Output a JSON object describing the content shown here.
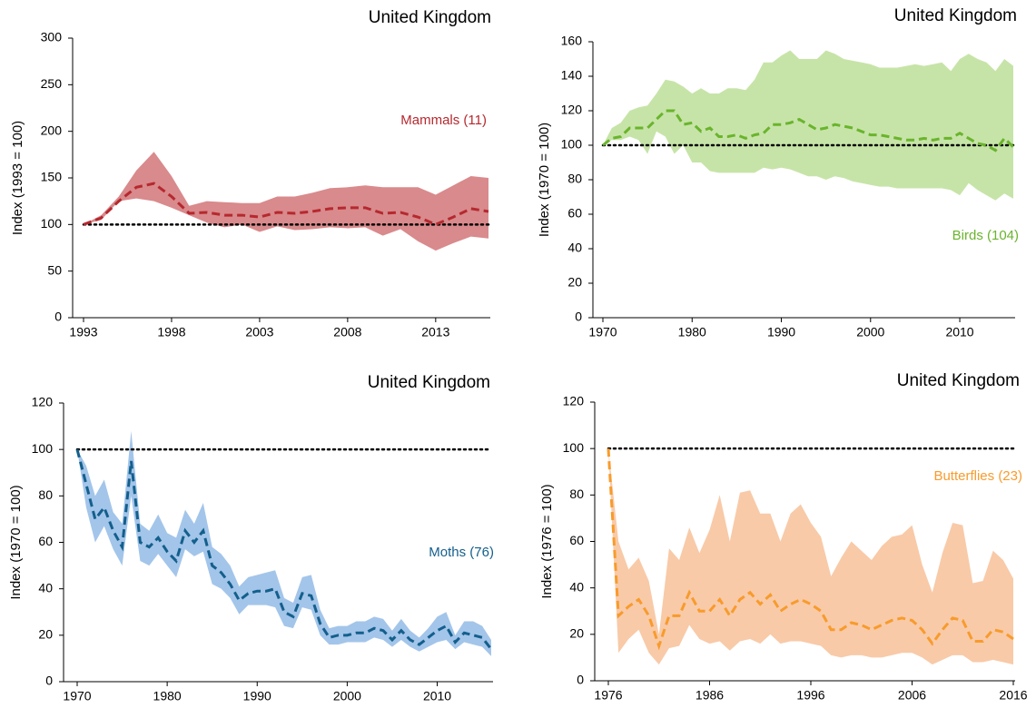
{
  "chart_data": [
    {
      "type": "line",
      "title": "United Kingdom",
      "y_label": "Index (1993 = 100)",
      "x": [
        1993,
        1994,
        1995,
        1996,
        1997,
        1998,
        1999,
        2000,
        2001,
        2002,
        2003,
        2004,
        2005,
        2006,
        2007,
        2008,
        2009,
        2010,
        2011,
        2012,
        2013,
        2014,
        2015,
        2016
      ],
      "xlim": [
        1993,
        2016
      ],
      "ylim": [
        0,
        300
      ],
      "xticks": [
        1993,
        1998,
        2003,
        2008,
        2013
      ],
      "yticks": [
        0,
        50,
        100,
        150,
        200,
        250,
        300
      ],
      "reference_line": 100,
      "series": [
        {
          "name": "Mammals (11)",
          "color": "#b5292f",
          "band_color": "#d98a8c",
          "values": [
            100,
            107,
            125,
            140,
            144,
            130,
            112,
            113,
            110,
            110,
            108,
            113,
            112,
            114,
            117,
            118,
            118,
            112,
            113,
            108,
            100,
            108,
            117,
            114
          ],
          "lower": [
            100,
            105,
            125,
            128,
            125,
            118,
            110,
            102,
            97,
            100,
            92,
            98,
            94,
            95,
            97,
            96,
            97,
            88,
            95,
            82,
            72,
            80,
            87,
            85
          ],
          "upper": [
            100,
            110,
            130,
            158,
            178,
            152,
            120,
            125,
            124,
            123,
            123,
            130,
            130,
            134,
            139,
            140,
            142,
            140,
            140,
            140,
            132,
            142,
            152,
            150
          ]
        }
      ]
    },
    {
      "type": "line",
      "title": "United Kingdom",
      "y_label": "Index (1970 = 100)",
      "x": [
        1970,
        1971,
        1972,
        1973,
        1974,
        1975,
        1976,
        1977,
        1978,
        1979,
        1980,
        1981,
        1982,
        1983,
        1984,
        1985,
        1986,
        1987,
        1988,
        1989,
        1990,
        1991,
        1992,
        1993,
        1994,
        1995,
        1996,
        1997,
        1998,
        1999,
        2000,
        2001,
        2002,
        2003,
        2004,
        2005,
        2006,
        2007,
        2008,
        2009,
        2010,
        2011,
        2012,
        2013,
        2014,
        2015,
        2016
      ],
      "xlim": [
        1970,
        2016
      ],
      "ylim": [
        0,
        160
      ],
      "xticks": [
        1970,
        1980,
        1990,
        2000,
        2010
      ],
      "yticks": [
        0,
        20,
        40,
        60,
        80,
        100,
        120,
        140,
        160
      ],
      "reference_line": 100,
      "series": [
        {
          "name": "Birds (104)",
          "color": "#6ab42d",
          "band_color": "#c7e4a8",
          "values": [
            100,
            104,
            105,
            110,
            110,
            110,
            115,
            120,
            120,
            112,
            113,
            108,
            110,
            105,
            105,
            106,
            104,
            106,
            107,
            112,
            112,
            113,
            115,
            112,
            109,
            110,
            112,
            111,
            110,
            108,
            106,
            106,
            105,
            104,
            103,
            103,
            104,
            103,
            104,
            104,
            107,
            104,
            101,
            100,
            97,
            104,
            99
          ],
          "lower": [
            100,
            103,
            103,
            105,
            103,
            95,
            108,
            105,
            95,
            100,
            90,
            90,
            85,
            84,
            84,
            84,
            84,
            84,
            87,
            86,
            87,
            86,
            84,
            82,
            82,
            80,
            82,
            81,
            79,
            78,
            77,
            76,
            76,
            75,
            75,
            75,
            75,
            75,
            75,
            74,
            71,
            78,
            74,
            71,
            68,
            72,
            69
          ],
          "upper": [
            100,
            110,
            113,
            120,
            122,
            123,
            130,
            138,
            137,
            134,
            130,
            133,
            130,
            130,
            133,
            133,
            132,
            138,
            148,
            148,
            152,
            155,
            150,
            150,
            150,
            155,
            153,
            150,
            149,
            148,
            147,
            145,
            145,
            145,
            146,
            147,
            146,
            147,
            148,
            143,
            150,
            153,
            150,
            148,
            143,
            150,
            146
          ]
        }
      ]
    },
    {
      "type": "line",
      "title": "United Kingdom",
      "y_label": "Index (1970 = 100)",
      "x": [
        1970,
        1971,
        1972,
        1973,
        1974,
        1975,
        1976,
        1977,
        1978,
        1979,
        1980,
        1981,
        1982,
        1983,
        1984,
        1985,
        1986,
        1987,
        1988,
        1989,
        1990,
        1991,
        1992,
        1993,
        1994,
        1995,
        1996,
        1997,
        1998,
        1999,
        2000,
        2001,
        2002,
        2003,
        2004,
        2005,
        2006,
        2007,
        2008,
        2009,
        2010,
        2011,
        2012,
        2013,
        2014,
        2015,
        2016
      ],
      "xlim": [
        1970,
        2016
      ],
      "ylim": [
        0,
        120
      ],
      "xticks": [
        1970,
        1980,
        1990,
        2000,
        2010
      ],
      "yticks": [
        0,
        20,
        40,
        60,
        80,
        100,
        120
      ],
      "reference_line": 100,
      "series": [
        {
          "name": "Moths (76)",
          "color": "#145f8c",
          "band_color": "#a3c5ea",
          "values": [
            100,
            85,
            70,
            75,
            65,
            58,
            95,
            60,
            58,
            62,
            56,
            52,
            65,
            60,
            65,
            50,
            47,
            42,
            35,
            38,
            39,
            39,
            40,
            30,
            28,
            38,
            37,
            25,
            19,
            20,
            20,
            21,
            21,
            23,
            22,
            18,
            22,
            18,
            16,
            19,
            22,
            24,
            17,
            21,
            20,
            19,
            14
          ],
          "lower": [
            100,
            75,
            60,
            67,
            57,
            50,
            80,
            52,
            50,
            55,
            50,
            45,
            57,
            54,
            56,
            42,
            40,
            36,
            29,
            33,
            33,
            33,
            32,
            24,
            23,
            32,
            31,
            20,
            16,
            16,
            17,
            17,
            17,
            19,
            18,
            15,
            18,
            15,
            13,
            15,
            17,
            18,
            14,
            17,
            16,
            15,
            11
          ],
          "upper": [
            100,
            93,
            80,
            87,
            73,
            68,
            108,
            68,
            65,
            72,
            64,
            62,
            74,
            68,
            77,
            58,
            55,
            50,
            41,
            45,
            46,
            47,
            48,
            36,
            34,
            45,
            46,
            31,
            23,
            24,
            24,
            26,
            26,
            28,
            27,
            22,
            27,
            22,
            19,
            23,
            28,
            30,
            20,
            26,
            26,
            24,
            18
          ]
        }
      ]
    },
    {
      "type": "line",
      "title": "United Kingdom",
      "y_label": "Index (1976 = 100)",
      "x": [
        1976,
        1977,
        1978,
        1979,
        1980,
        1981,
        1982,
        1983,
        1984,
        1985,
        1986,
        1987,
        1988,
        1989,
        1990,
        1991,
        1992,
        1993,
        1994,
        1995,
        1996,
        1997,
        1998,
        1999,
        2000,
        2001,
        2002,
        2003,
        2004,
        2005,
        2006,
        2007,
        2008,
        2009,
        2010,
        2011,
        2012,
        2013,
        2014,
        2015,
        2016
      ],
      "xlim": [
        1976,
        2016
      ],
      "ylim": [
        0,
        120
      ],
      "xticks": [
        1976,
        1986,
        1996,
        2006,
        2016
      ],
      "yticks": [
        0,
        20,
        40,
        60,
        80,
        100,
        120
      ],
      "reference_line": 100,
      "series": [
        {
          "name": "Butterflies (23)",
          "color": "#f89b2c",
          "band_color": "#f8caa8",
          "values": [
            100,
            28,
            32,
            35,
            28,
            15,
            28,
            28,
            38,
            30,
            30,
            35,
            28,
            35,
            38,
            33,
            37,
            30,
            33,
            35,
            33,
            30,
            22,
            22,
            25,
            24,
            22,
            24,
            26,
            27,
            26,
            22,
            16,
            22,
            27,
            26,
            17,
            17,
            22,
            21,
            18
          ],
          "lower": [
            100,
            12,
            18,
            22,
            12,
            7,
            14,
            15,
            24,
            18,
            16,
            17,
            13,
            17,
            18,
            16,
            20,
            16,
            17,
            17,
            16,
            15,
            11,
            10,
            11,
            11,
            10,
            10,
            11,
            12,
            12,
            10,
            7,
            9,
            11,
            11,
            8,
            8,
            9,
            8,
            7
          ],
          "upper": [
            100,
            60,
            48,
            53,
            43,
            20,
            57,
            52,
            66,
            55,
            65,
            80,
            60,
            81,
            82,
            72,
            72,
            60,
            72,
            76,
            68,
            62,
            45,
            53,
            60,
            56,
            52,
            58,
            62,
            63,
            67,
            50,
            38,
            55,
            68,
            67,
            42,
            43,
            56,
            52,
            44
          ]
        }
      ]
    }
  ]
}
